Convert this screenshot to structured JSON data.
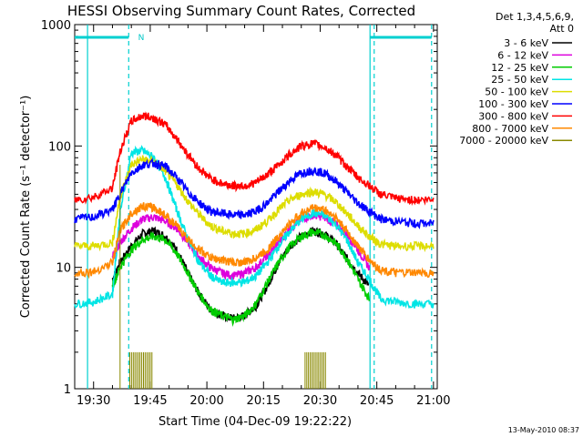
{
  "chart_data": {
    "type": "line",
    "title": "HESSI Observing Summary Count Rates, Corrected",
    "xlabel": "Start Time (04-Dec-09 19:22:22)",
    "ylabel": "Corrected Count Rate (s⁻¹ detector⁻¹)",
    "yscale": "log",
    "ylim": [
      1,
      1000
    ],
    "xlim_minutes_after_19_00": [
      25,
      121
    ],
    "x_tick_labels": [
      "19:30",
      "19:45",
      "20:00",
      "20:15",
      "20:30",
      "20:45",
      "21:00"
    ],
    "x_tick_minutes": [
      30,
      45,
      60,
      75,
      90,
      105,
      120
    ],
    "y_tick_labels": [
      "1",
      "10",
      "100",
      "1000"
    ],
    "y_tick_values": [
      1,
      10,
      100,
      1000
    ],
    "legend_header": [
      "Det 1,3,4,5,6,9,",
      "Att 0"
    ],
    "legend_placement": "right",
    "footer_date": "13-May-2010 08:37",
    "night_marker_label": "N",
    "markers": {
      "solid_vertical_minutes": [
        28.4,
        103.2
      ],
      "dashed_vertical_minutes": [
        39.3,
        104.3,
        119.5
      ],
      "night_bar_left_minutes": [
        25,
        39.3
      ],
      "night_bar_right_minutes": [
        103.2,
        119.5
      ]
    },
    "series": [
      {
        "name": "3 - 6 keV",
        "color": "#000000",
        "x": [
          25,
          30,
          35,
          37,
          40,
          43,
          46,
          49,
          52,
          55,
          58,
          61,
          64,
          67,
          70,
          73,
          76,
          79,
          82,
          85,
          88,
          91,
          94,
          97,
          100,
          103,
          106,
          110,
          115,
          120
        ],
        "y": [
          null,
          null,
          8,
          11,
          15,
          19,
          20,
          18,
          14,
          9,
          6,
          4.5,
          4,
          3.8,
          4,
          4.8,
          7,
          11,
          15,
          18,
          20,
          19,
          16,
          12,
          9,
          7,
          null,
          null,
          null,
          null
        ]
      },
      {
        "name": "6 - 12 keV",
        "color": "#dd00dd",
        "x": [
          25,
          30,
          35,
          37,
          40,
          43,
          46,
          49,
          52,
          55,
          58,
          61,
          64,
          67,
          70,
          73,
          76,
          79,
          82,
          85,
          88,
          91,
          94,
          97,
          100,
          103,
          106,
          110,
          115,
          120
        ],
        "y": [
          null,
          null,
          12,
          16,
          21,
          25,
          26,
          24,
          21,
          16,
          12,
          10,
          9,
          8.5,
          9,
          10,
          12.5,
          16,
          21,
          25,
          27,
          26,
          23,
          19,
          14,
          10,
          null,
          null,
          null,
          null
        ]
      },
      {
        "name": "12 - 25 keV",
        "color": "#00cc00",
        "x": [
          25,
          30,
          35,
          37,
          40,
          43,
          46,
          49,
          52,
          55,
          58,
          61,
          64,
          67,
          70,
          73,
          76,
          79,
          82,
          85,
          88,
          91,
          94,
          97,
          100,
          103,
          106,
          110,
          115,
          120
        ],
        "y": [
          null,
          null,
          7,
          10,
          14,
          17,
          18,
          17,
          13,
          9,
          6,
          4.5,
          4,
          3.7,
          4,
          5,
          7.5,
          11,
          15,
          18,
          19.5,
          18.5,
          16,
          12,
          8,
          5.5,
          null,
          null,
          null,
          null
        ]
      },
      {
        "name": "25 - 50 keV",
        "color": "#00e5e5",
        "x": [
          25,
          30,
          35,
          37,
          40,
          43,
          46,
          49,
          52,
          55,
          58,
          61,
          64,
          67,
          70,
          73,
          76,
          79,
          82,
          85,
          88,
          91,
          94,
          97,
          100,
          103,
          106,
          110,
          115,
          120
        ],
        "y": [
          5,
          5.2,
          6,
          28,
          88,
          92,
          80,
          55,
          30,
          17,
          11,
          8.5,
          7.5,
          7.5,
          7.6,
          8.5,
          11,
          15,
          20,
          25,
          28,
          27,
          23,
          17,
          11,
          8,
          5.5,
          5.2,
          5,
          5
        ]
      },
      {
        "name": "50 - 100 keV",
        "color": "#dddd00",
        "x": [
          25,
          30,
          35,
          37,
          40,
          43,
          46,
          49,
          52,
          55,
          58,
          61,
          64,
          67,
          70,
          73,
          76,
          79,
          82,
          85,
          88,
          91,
          94,
          97,
          100,
          103,
          106,
          110,
          115,
          120
        ],
        "y": [
          15,
          15,
          16,
          38,
          70,
          78,
          74,
          62,
          48,
          35,
          27,
          22,
          20,
          19,
          19,
          20.5,
          24,
          30,
          36,
          40,
          42,
          40,
          35,
          28,
          22,
          18,
          15.5,
          15,
          15,
          15
        ]
      },
      {
        "name": "100 - 300 keV",
        "color": "#0000ff",
        "x": [
          25,
          30,
          35,
          37,
          40,
          43,
          46,
          49,
          52,
          55,
          58,
          61,
          64,
          67,
          70,
          73,
          76,
          79,
          82,
          85,
          88,
          91,
          94,
          97,
          100,
          103,
          106,
          110,
          115,
          120
        ],
        "y": [
          25,
          26,
          30,
          40,
          60,
          70,
          72,
          68,
          55,
          42,
          34,
          29,
          28,
          27,
          27,
          29,
          34,
          42,
          52,
          60,
          63,
          60,
          52,
          42,
          34,
          29,
          25,
          24,
          23,
          23
        ]
      },
      {
        "name": "300 - 800 keV",
        "color": "#ff0000",
        "x": [
          25,
          30,
          35,
          37,
          40,
          43,
          46,
          49,
          52,
          55,
          58,
          61,
          64,
          67,
          70,
          73,
          76,
          79,
          82,
          85,
          88,
          91,
          94,
          97,
          100,
          103,
          106,
          110,
          115,
          120
        ],
        "y": [
          36,
          38,
          45,
          90,
          160,
          178,
          170,
          150,
          115,
          85,
          65,
          54,
          49,
          47,
          47,
          50,
          58,
          70,
          86,
          100,
          105,
          98,
          85,
          68,
          55,
          47,
          40,
          37,
          36,
          36
        ]
      },
      {
        "name": "800 - 7000 keV",
        "color": "#ff8800",
        "x": [
          25,
          30,
          35,
          37,
          40,
          43,
          46,
          49,
          52,
          55,
          58,
          61,
          64,
          67,
          70,
          73,
          76,
          79,
          82,
          85,
          88,
          91,
          94,
          97,
          100,
          103,
          106,
          110,
          115,
          120
        ],
        "y": [
          9,
          9.2,
          11,
          20,
          28,
          32,
          31,
          27,
          22,
          17,
          14,
          12,
          11.5,
          11,
          11,
          12,
          14,
          18,
          23,
          28,
          31,
          30,
          26,
          20,
          15,
          11.5,
          9.5,
          9,
          9,
          9
        ]
      },
      {
        "name": "7000 - 20000 keV",
        "color": "#888800",
        "x": [
          25,
          30,
          35,
          37,
          40,
          43,
          46,
          49,
          52,
          55,
          58,
          61,
          64,
          67,
          70,
          73,
          76,
          79,
          82,
          85,
          88,
          91,
          94,
          97,
          100,
          103,
          106,
          110,
          115,
          120
        ],
        "y": [
          null,
          null,
          null,
          70,
          75,
          78,
          null,
          null,
          null,
          null,
          null,
          null,
          null,
          null,
          null,
          null,
          null,
          null,
          null,
          null,
          null,
          null,
          null,
          null,
          null,
          null,
          null,
          null,
          null,
          null
        ]
      }
    ]
  }
}
